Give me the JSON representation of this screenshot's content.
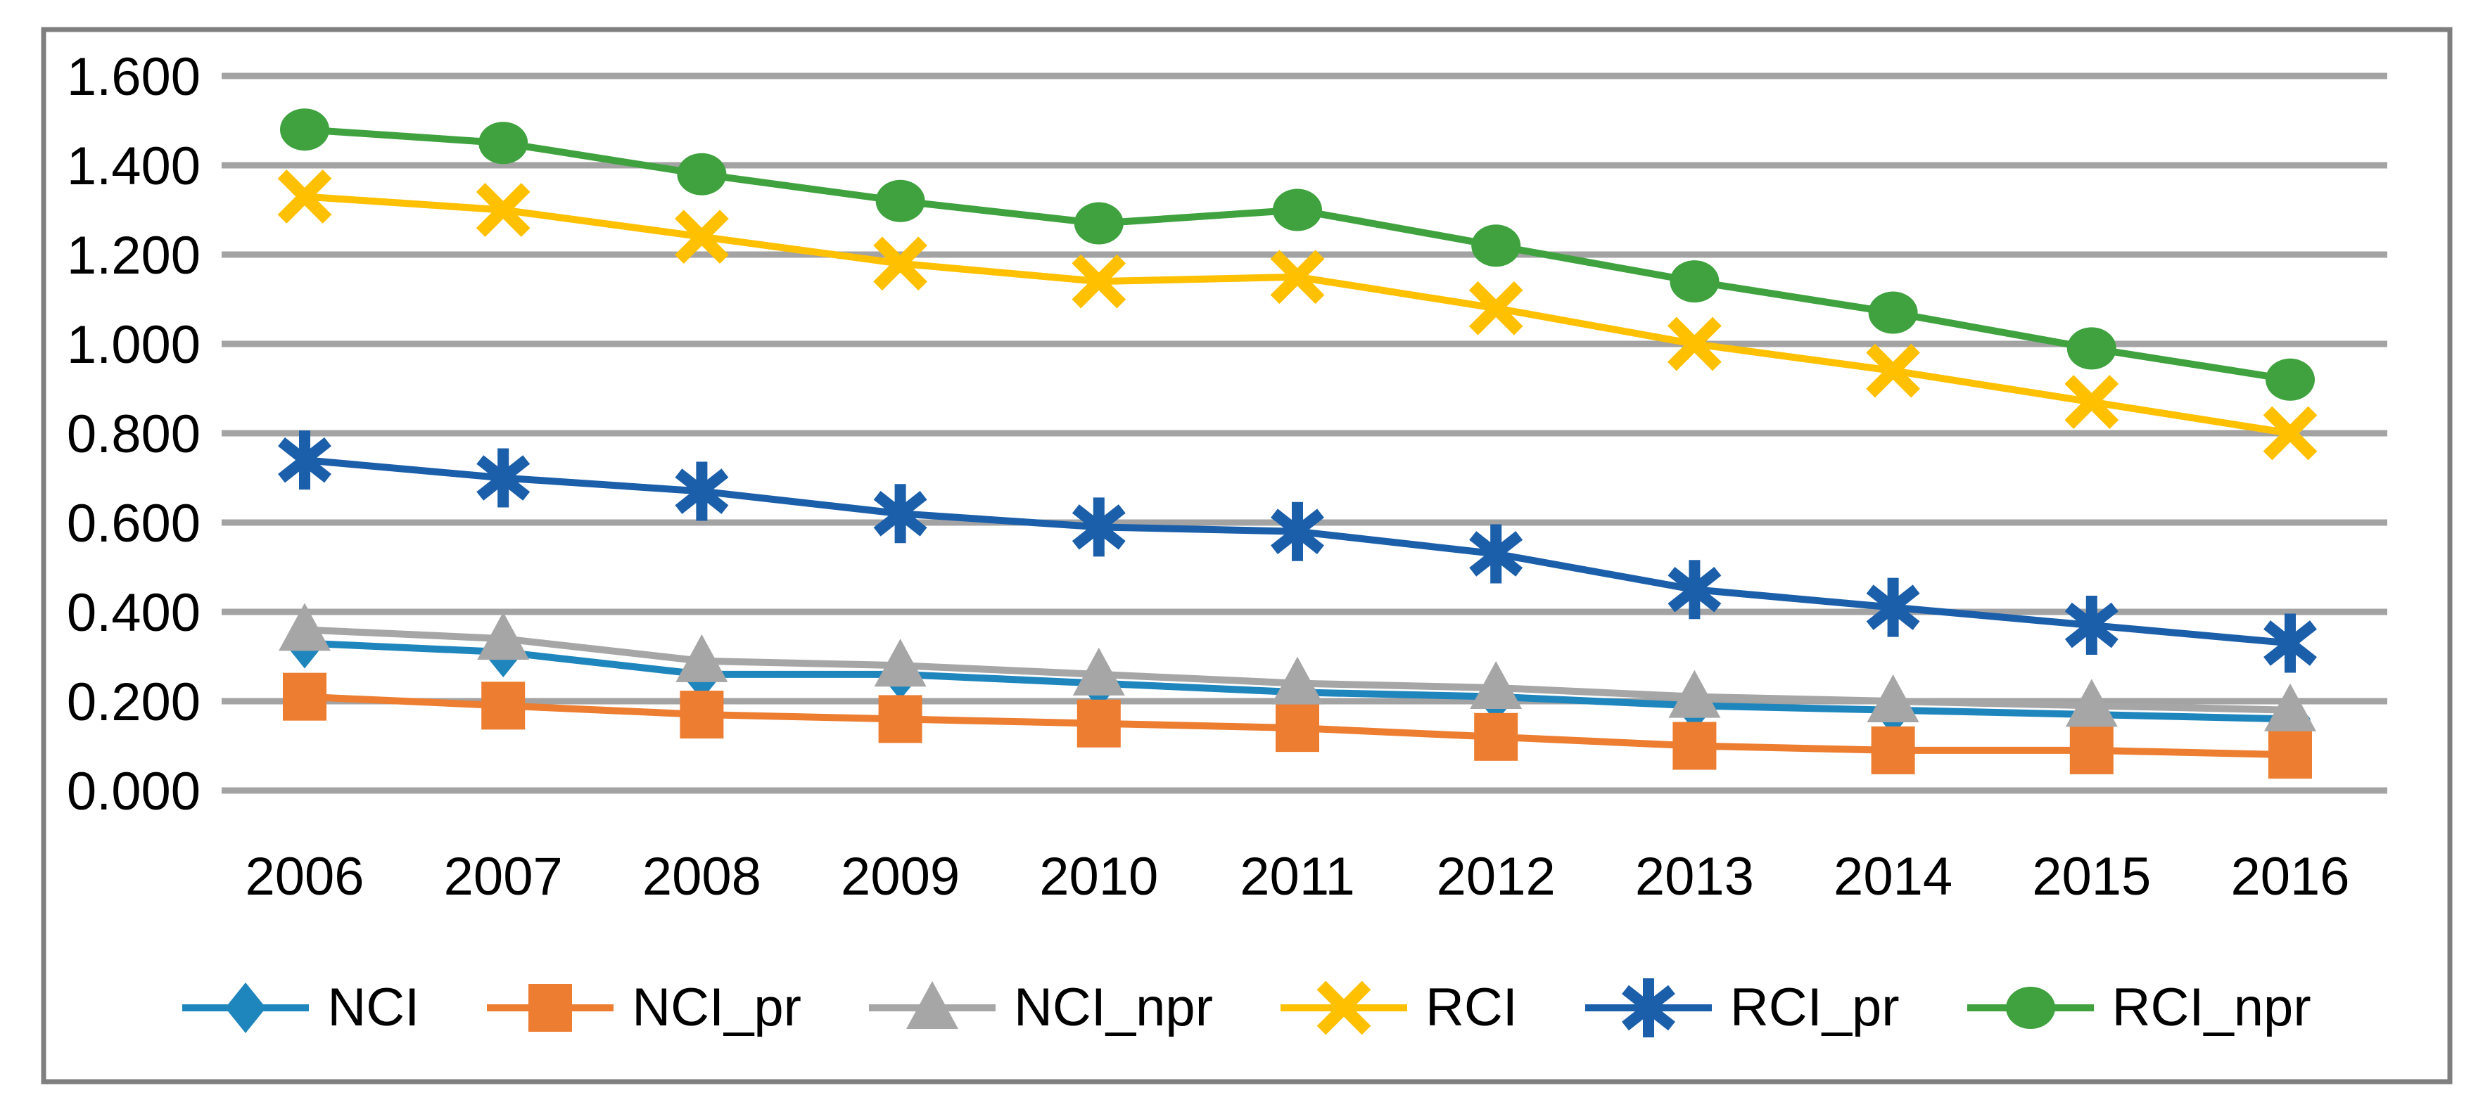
{
  "figure": {
    "background_color": "#FFFFFF",
    "border_color": "#7F7F7F",
    "gridline_color": "#A3A3A3",
    "text_color": "#000000"
  },
  "chart_data": {
    "type": "line",
    "title": "",
    "xlabel": "",
    "ylabel": "",
    "grid": true,
    "legend_position": "bottom",
    "categories": [
      "2006",
      "2007",
      "2008",
      "2009",
      "2010",
      "2011",
      "2012",
      "2013",
      "2014",
      "2015",
      "2016"
    ],
    "y_axis": {
      "min": 0.0,
      "max": 1.6,
      "step": 0.2,
      "tick_labels": [
        "1.600",
        "1.400",
        "1.200",
        "1.000",
        "0.800",
        "0.600",
        "0.400",
        "0.200",
        "0.000"
      ]
    },
    "series": [
      {
        "name": "NCI",
        "color": "#1F86BD",
        "marker": "diamond",
        "values": [
          0.33,
          0.31,
          0.26,
          0.26,
          0.24,
          0.22,
          0.21,
          0.19,
          0.18,
          0.17,
          0.16
        ]
      },
      {
        "name": "NCI_pr",
        "color": "#ED7D31",
        "marker": "square",
        "values": [
          0.21,
          0.19,
          0.17,
          0.16,
          0.15,
          0.14,
          0.12,
          0.1,
          0.09,
          0.09,
          0.08
        ]
      },
      {
        "name": "NCI_npr",
        "color": "#A6A6A6",
        "marker": "triangle",
        "values": [
          0.36,
          0.34,
          0.29,
          0.28,
          0.26,
          0.24,
          0.23,
          0.21,
          0.2,
          0.19,
          0.18
        ]
      },
      {
        "name": "RCI",
        "color": "#FFC000",
        "marker": "x",
        "values": [
          1.33,
          1.3,
          1.24,
          1.18,
          1.14,
          1.15,
          1.08,
          1.0,
          0.94,
          0.87,
          0.8
        ]
      },
      {
        "name": "RCI_pr",
        "color": "#1B5EA9",
        "marker": "star6",
        "values": [
          0.74,
          0.7,
          0.67,
          0.62,
          0.59,
          0.58,
          0.53,
          0.45,
          0.41,
          0.37,
          0.33
        ]
      },
      {
        "name": "RCI_npr",
        "color": "#3FA23F",
        "marker": "circle",
        "values": [
          1.48,
          1.45,
          1.38,
          1.32,
          1.27,
          1.3,
          1.22,
          1.14,
          1.07,
          0.99,
          0.92
        ]
      }
    ]
  }
}
